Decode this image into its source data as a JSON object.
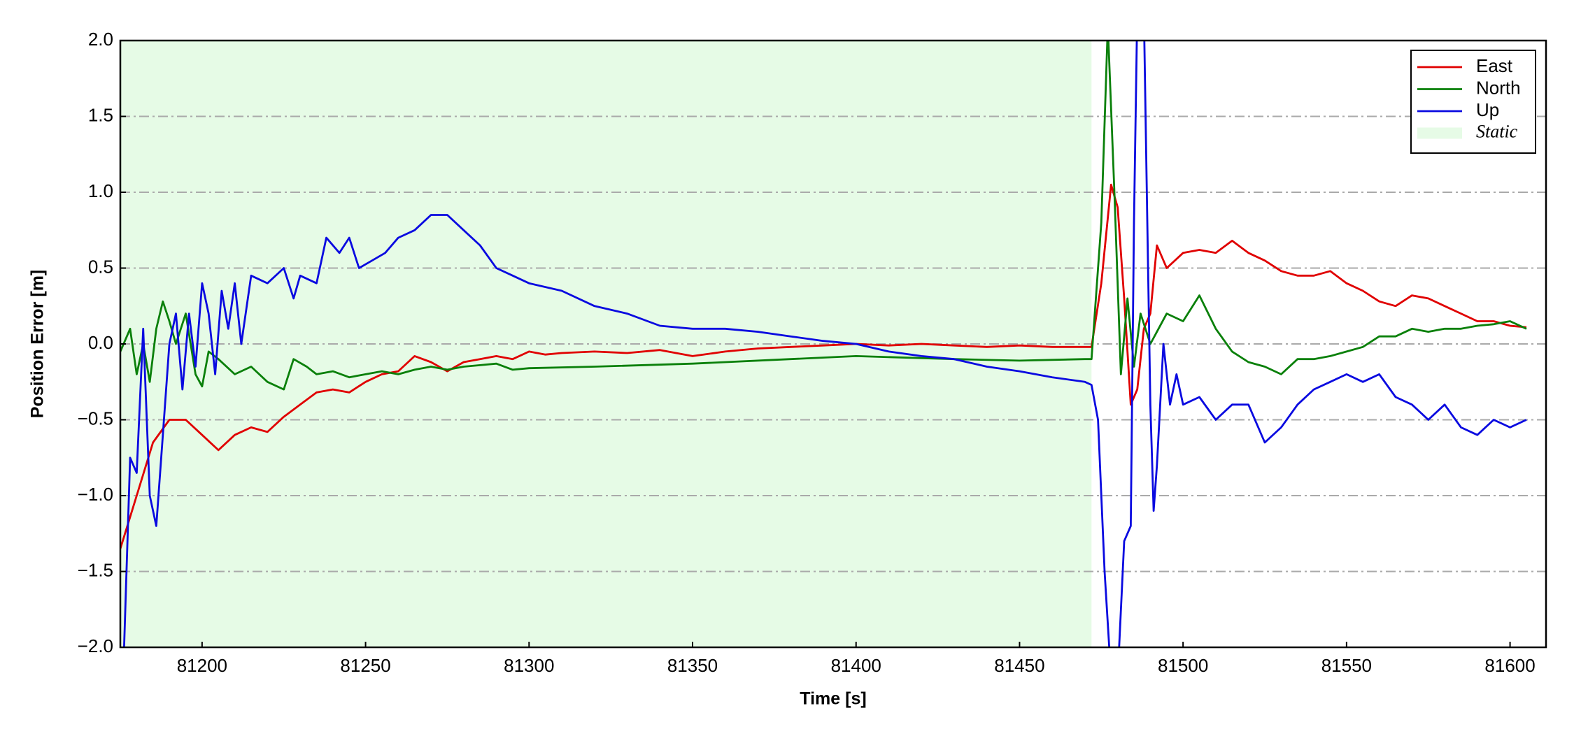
{
  "chart_data": {
    "type": "line",
    "xlabel": "Time [s]",
    "ylabel": "Position Error [m]",
    "xlim": [
      81175,
      81611
    ],
    "ylim": [
      -2,
      2
    ],
    "xticks": [
      81200,
      81250,
      81300,
      81350,
      81400,
      81450,
      81500,
      81550,
      81600
    ],
    "yticks": [
      {
        "value": -2,
        "label": "−2.0"
      },
      {
        "value": -1.5,
        "label": "−1.5"
      },
      {
        "value": -1,
        "label": "−1.0"
      },
      {
        "value": -0.5,
        "label": "−0.5"
      },
      {
        "value": 0,
        "label": "0.0"
      },
      0.5,
      {
        "value": 1,
        "label": "1.0"
      },
      1.5,
      {
        "value": 2,
        "label": "2.0"
      }
    ],
    "grid": true,
    "legend": "upper right",
    "spans": [
      {
        "label": "Static",
        "x0": 81175,
        "x1": 81472,
        "color": "#e6fbe6"
      }
    ],
    "series": [
      {
        "name": "East",
        "color": "#e00000",
        "x": [
          81175,
          81180,
          81185,
          81190,
          81195,
          81200,
          81205,
          81210,
          81215,
          81220,
          81225,
          81230,
          81235,
          81240,
          81245,
          81250,
          81255,
          81260,
          81265,
          81270,
          81275,
          81280,
          81285,
          81290,
          81295,
          81300,
          81305,
          81310,
          81320,
          81330,
          81340,
          81350,
          81360,
          81370,
          81380,
          81390,
          81400,
          81410,
          81420,
          81430,
          81440,
          81450,
          81460,
          81470,
          81472,
          81475,
          81478,
          81480,
          81482,
          81484,
          81486,
          81488,
          81490,
          81492,
          81495,
          81500,
          81505,
          81510,
          81515,
          81520,
          81525,
          81530,
          81535,
          81540,
          81545,
          81550,
          81555,
          81560,
          81565,
          81570,
          81575,
          81580,
          81585,
          81590,
          81595,
          81600,
          81605
        ],
        "values": [
          -1.35,
          -1.0,
          -0.65,
          -0.5,
          -0.5,
          -0.6,
          -0.7,
          -0.6,
          -0.55,
          -0.58,
          -0.48,
          -0.4,
          -0.32,
          -0.3,
          -0.32,
          -0.25,
          -0.2,
          -0.18,
          -0.08,
          -0.12,
          -0.18,
          -0.12,
          -0.1,
          -0.08,
          -0.1,
          -0.05,
          -0.07,
          -0.06,
          -0.05,
          -0.06,
          -0.04,
          -0.08,
          -0.05,
          -0.03,
          -0.02,
          -0.01,
          0.0,
          -0.01,
          0.0,
          -0.01,
          -0.02,
          -0.01,
          -0.02,
          -0.02,
          -0.02,
          0.4,
          1.05,
          0.9,
          0.3,
          -0.4,
          -0.3,
          0.1,
          0.2,
          0.65,
          0.5,
          0.6,
          0.62,
          0.6,
          0.68,
          0.6,
          0.55,
          0.48,
          0.45,
          0.45,
          0.48,
          0.4,
          0.35,
          0.28,
          0.25,
          0.32,
          0.3,
          0.25,
          0.2,
          0.15,
          0.15,
          0.12,
          0.11
        ]
      },
      {
        "name": "North",
        "color": "#0a800a",
        "x": [
          81175,
          81178,
          81180,
          81182,
          81184,
          81186,
          81188,
          81190,
          81192,
          81195,
          81198,
          81200,
          81202,
          81205,
          81210,
          81215,
          81220,
          81225,
          81228,
          81232,
          81235,
          81240,
          81245,
          81250,
          81255,
          81260,
          81265,
          81270,
          81275,
          81280,
          81285,
          81290,
          81295,
          81300,
          81320,
          81350,
          81380,
          81400,
          81430,
          81450,
          81470,
          81472,
          81475,
          81477,
          81479,
          81481,
          81483,
          81485,
          81487,
          81490,
          81495,
          81500,
          81505,
          81510,
          81515,
          81520,
          81525,
          81530,
          81535,
          81540,
          81545,
          81550,
          81555,
          81560,
          81565,
          81570,
          81575,
          81580,
          81585,
          81590,
          81595,
          81600,
          81605
        ],
        "values": [
          -0.05,
          0.1,
          -0.2,
          0.0,
          -0.25,
          0.1,
          0.28,
          0.15,
          0.0,
          0.2,
          -0.2,
          -0.28,
          -0.05,
          -0.1,
          -0.2,
          -0.15,
          -0.25,
          -0.3,
          -0.1,
          -0.15,
          -0.2,
          -0.18,
          -0.22,
          -0.2,
          -0.18,
          -0.2,
          -0.17,
          -0.15,
          -0.17,
          -0.15,
          -0.14,
          -0.13,
          -0.17,
          -0.16,
          -0.15,
          -0.13,
          -0.1,
          -0.08,
          -0.1,
          -0.11,
          -0.1,
          -0.1,
          0.8,
          2.1,
          1.0,
          -0.2,
          0.3,
          -0.15,
          0.2,
          0.0,
          0.2,
          0.15,
          0.32,
          0.1,
          -0.05,
          -0.12,
          -0.15,
          -0.2,
          -0.1,
          -0.1,
          -0.08,
          -0.05,
          -0.02,
          0.05,
          0.05,
          0.1,
          0.08,
          0.1,
          0.1,
          0.12,
          0.13,
          0.15,
          0.1
        ]
      },
      {
        "name": "Up",
        "color": "#0a0ae0",
        "x": [
          81176,
          81178,
          81180,
          81182,
          81184,
          81186,
          81188,
          81190,
          81192,
          81194,
          81196,
          81198,
          81200,
          81202,
          81204,
          81206,
          81208,
          81210,
          81212,
          81215,
          81220,
          81225,
          81228,
          81230,
          81235,
          81238,
          81242,
          81245,
          81248,
          81252,
          81256,
          81260,
          81265,
          81270,
          81275,
          81280,
          81285,
          81290,
          81295,
          81300,
          81310,
          81320,
          81330,
          81340,
          81350,
          81360,
          81370,
          81380,
          81390,
          81400,
          81410,
          81420,
          81430,
          81440,
          81450,
          81460,
          81470,
          81472,
          81474,
          81476,
          81478,
          81480,
          81482,
          81484,
          81485,
          81486,
          81488,
          81489,
          81490,
          81491,
          81492,
          81494,
          81496,
          81498,
          81500,
          81505,
          81510,
          81515,
          81520,
          81525,
          81530,
          81535,
          81540,
          81545,
          81550,
          81555,
          81560,
          81565,
          81570,
          81575,
          81580,
          81585,
          81590,
          81595,
          81600,
          81605
        ],
        "values": [
          -2.1,
          -0.75,
          -0.85,
          0.1,
          -1.0,
          -1.2,
          -0.6,
          0.0,
          0.2,
          -0.3,
          0.2,
          -0.15,
          0.4,
          0.2,
          -0.2,
          0.35,
          0.1,
          0.4,
          0.0,
          0.45,
          0.4,
          0.5,
          0.3,
          0.45,
          0.4,
          0.7,
          0.6,
          0.7,
          0.5,
          0.55,
          0.6,
          0.7,
          0.75,
          0.85,
          0.85,
          0.75,
          0.65,
          0.5,
          0.45,
          0.4,
          0.35,
          0.25,
          0.2,
          0.12,
          0.1,
          0.1,
          0.08,
          0.05,
          0.02,
          0.0,
          -0.05,
          -0.08,
          -0.1,
          -0.15,
          -0.18,
          -0.22,
          -0.25,
          -0.27,
          -0.5,
          -1.5,
          -2.2,
          -2.2,
          -1.3,
          -1.2,
          0.8,
          2.2,
          2.2,
          0.9,
          -0.4,
          -1.1,
          -0.8,
          0.0,
          -0.4,
          -0.2,
          -0.4,
          -0.35,
          -0.5,
          -0.4,
          -0.4,
          -0.65,
          -0.55,
          -0.4,
          -0.3,
          -0.25,
          -0.2,
          -0.25,
          -0.2,
          -0.35,
          -0.4,
          -0.5,
          -0.4,
          -0.55,
          -0.6,
          -0.5,
          -0.55,
          -0.5
        ]
      }
    ]
  }
}
